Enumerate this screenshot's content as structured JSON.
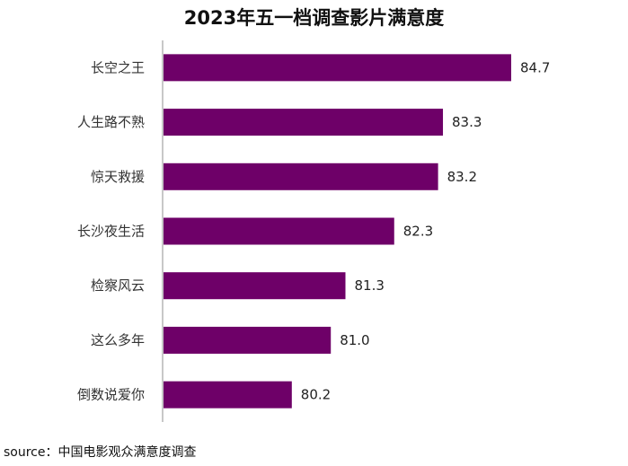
{
  "chart_data": {
    "type": "bar",
    "orientation": "horizontal",
    "title": "2023年五一档调查影片满意度",
    "categories": [
      "长空之王",
      "人生路不熟",
      "惊天救援",
      "长沙夜生活",
      "检察风云",
      "这么多年",
      "倒数说爱你"
    ],
    "values": [
      84.7,
      83.3,
      83.2,
      82.3,
      81.3,
      81.0,
      80.2
    ],
    "value_labels": [
      "84.7",
      "83.3",
      "83.2",
      "82.3",
      "81.3",
      "81.0",
      "80.2"
    ],
    "xlim": [
      77.55,
      84.7
    ],
    "xlabel": "",
    "ylabel": "",
    "grid": false,
    "legend": "none",
    "bar_color": "#6e0068",
    "axis_color": "#c8c8c8"
  },
  "source": "source：中国电影观众满意度调查"
}
